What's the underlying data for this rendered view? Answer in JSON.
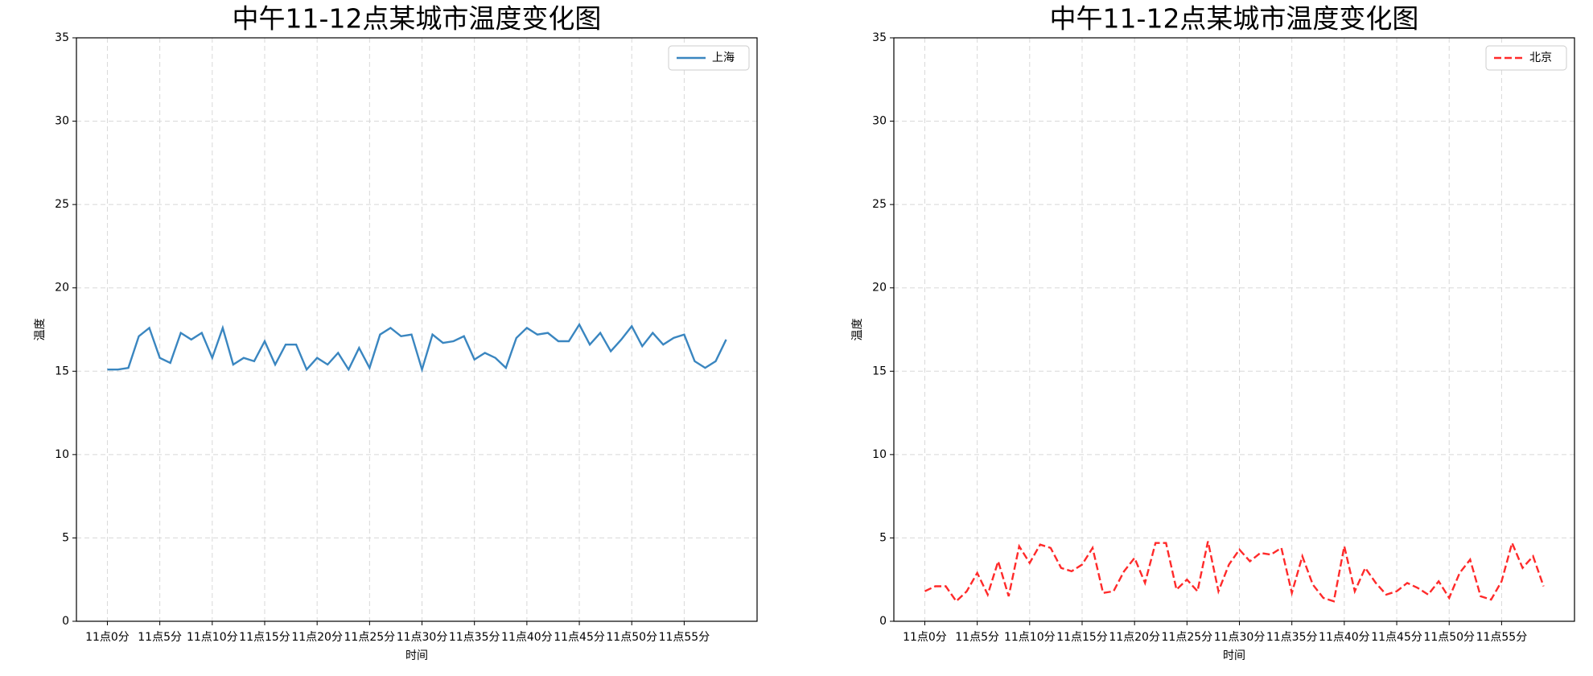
{
  "chart_data": [
    {
      "type": "line",
      "title": "中午11-12点某城市温度变化图",
      "x_label": "时间",
      "y_label": "温度",
      "x": [
        0,
        1,
        2,
        3,
        4,
        5,
        6,
        7,
        8,
        9,
        10,
        11,
        12,
        13,
        14,
        15,
        16,
        17,
        18,
        19,
        20,
        21,
        22,
        23,
        24,
        25,
        26,
        27,
        28,
        29,
        30,
        31,
        32,
        33,
        34,
        35,
        36,
        37,
        38,
        39,
        40,
        41,
        42,
        43,
        44,
        45,
        46,
        47,
        48,
        49,
        50,
        51,
        52,
        53,
        54,
        55,
        56,
        57,
        58,
        59
      ],
      "series": [
        {
          "name": "上海",
          "color": "#3a86c0",
          "linestyle": "solid",
          "values": [
            15.1,
            15.1,
            15.2,
            17.1,
            17.6,
            15.8,
            15.5,
            17.3,
            16.9,
            17.3,
            15.8,
            17.6,
            15.4,
            15.8,
            15.6,
            16.8,
            15.4,
            16.6,
            16.6,
            15.1,
            15.8,
            15.4,
            16.1,
            15.1,
            16.4,
            15.2,
            17.2,
            17.6,
            17.1,
            17.2,
            15.1,
            17.2,
            16.7,
            16.8,
            17.1,
            15.7,
            16.1,
            15.8,
            15.2,
            17.0,
            17.6,
            17.2,
            17.3,
            16.8,
            16.8,
            17.8,
            16.6,
            17.3,
            16.2,
            16.9,
            17.7,
            16.5,
            17.3,
            16.6,
            17.0,
            17.2,
            15.6,
            15.2,
            15.6,
            16.9
          ]
        }
      ],
      "xlim": [
        -2.95,
        61.95
      ],
      "xticks": [
        {
          "value": 0,
          "label": "11点0分"
        },
        {
          "value": 5,
          "label": "11点5分"
        },
        {
          "value": 10,
          "label": "11点10分"
        },
        {
          "value": 15,
          "label": "11点15分"
        },
        {
          "value": 20,
          "label": "11点20分"
        },
        {
          "value": 25,
          "label": "11点25分"
        },
        {
          "value": 30,
          "label": "11点30分"
        },
        {
          "value": 35,
          "label": "11点35分"
        },
        {
          "value": 40,
          "label": "11点40分"
        },
        {
          "value": 45,
          "label": "11点45分"
        },
        {
          "value": 50,
          "label": "11点50分"
        },
        {
          "value": 55,
          "label": "11点55分"
        }
      ],
      "ylim": [
        0,
        35
      ],
      "yticks": [
        0,
        5,
        10,
        15,
        20,
        25,
        30,
        35
      ],
      "grid": true,
      "legend": "upper-right"
    },
    {
      "type": "line",
      "title": "中午11-12点某城市温度变化图",
      "x_label": "时间",
      "y_label": "温度",
      "x": [
        0,
        1,
        2,
        3,
        4,
        5,
        6,
        7,
        8,
        9,
        10,
        11,
        12,
        13,
        14,
        15,
        16,
        17,
        18,
        19,
        20,
        21,
        22,
        23,
        24,
        25,
        26,
        27,
        28,
        29,
        30,
        31,
        32,
        33,
        34,
        35,
        36,
        37,
        38,
        39,
        40,
        41,
        42,
        43,
        44,
        45,
        46,
        47,
        48,
        49,
        50,
        51,
        52,
        53,
        54,
        55,
        56,
        57,
        58,
        59
      ],
      "series": [
        {
          "name": "北京",
          "color": "#ff2a2a",
          "linestyle": "dashed",
          "values": [
            1.8,
            2.1,
            2.1,
            1.2,
            1.8,
            2.9,
            1.6,
            3.6,
            1.5,
            4.5,
            3.5,
            4.6,
            4.4,
            3.2,
            3.0,
            3.4,
            4.4,
            1.7,
            1.8,
            3.0,
            3.8,
            2.3,
            4.7,
            4.7,
            1.9,
            2.5,
            1.8,
            4.8,
            1.8,
            3.4,
            4.3,
            3.6,
            4.1,
            4.0,
            4.4,
            1.7,
            3.9,
            2.2,
            1.4,
            1.2,
            4.5,
            1.8,
            3.2,
            2.3,
            1.6,
            1.8,
            2.3,
            2.0,
            1.6,
            2.4,
            1.4,
            2.9,
            3.7,
            1.5,
            1.3,
            2.4,
            4.7,
            3.2,
            3.9,
            2.1
          ]
        }
      ],
      "xlim": [
        -2.95,
        61.95
      ],
      "xticks": [
        {
          "value": 0,
          "label": "11点0分"
        },
        {
          "value": 5,
          "label": "11点5分"
        },
        {
          "value": 10,
          "label": "11点10分"
        },
        {
          "value": 15,
          "label": "11点15分"
        },
        {
          "value": 20,
          "label": "11点20分"
        },
        {
          "value": 25,
          "label": "11点25分"
        },
        {
          "value": 30,
          "label": "11点30分"
        },
        {
          "value": 35,
          "label": "11点35分"
        },
        {
          "value": 40,
          "label": "11点40分"
        },
        {
          "value": 45,
          "label": "11点45分"
        },
        {
          "value": 50,
          "label": "11点50分"
        },
        {
          "value": 55,
          "label": "11点55分"
        }
      ],
      "ylim": [
        0,
        35
      ],
      "yticks": [
        0,
        5,
        10,
        15,
        20,
        25,
        30,
        35
      ],
      "grid": true,
      "legend": "upper-right"
    }
  ]
}
